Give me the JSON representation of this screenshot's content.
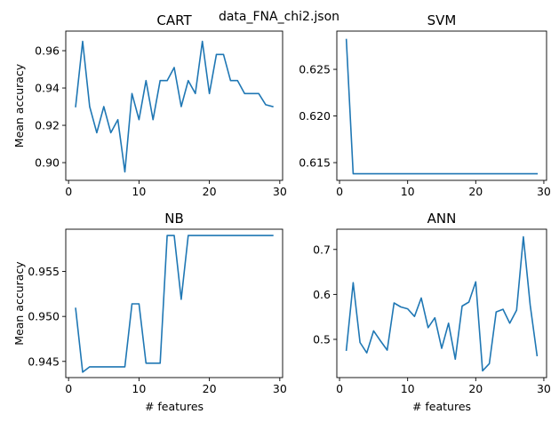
{
  "figure_title": "data_FNA_chi2.json",
  "colors": {
    "line": "#1f77b4",
    "axes": "#000000",
    "background": "#ffffff"
  },
  "chart_data": [
    {
      "type": "line",
      "title": "CART",
      "xlabel": "",
      "ylabel": "Mean accuracy",
      "xlim": [
        -0.4,
        30.4
      ],
      "ylim": [
        0.8905,
        0.9705
      ],
      "xticks": [
        "0",
        "10",
        "20",
        "30"
      ],
      "yticks": [
        "0.90",
        "0.92",
        "0.94",
        "0.96"
      ],
      "grid": false,
      "x": [
        1,
        2,
        3,
        4,
        5,
        6,
        7,
        8,
        9,
        10,
        11,
        12,
        13,
        14,
        15,
        16,
        17,
        18,
        19,
        20,
        21,
        22,
        23,
        24,
        25,
        26,
        27,
        28,
        29
      ],
      "values": [
        0.93,
        0.965,
        0.93,
        0.916,
        0.93,
        0.916,
        0.923,
        0.895,
        0.937,
        0.923,
        0.944,
        0.923,
        0.944,
        0.944,
        0.951,
        0.93,
        0.944,
        0.937,
        0.965,
        0.937,
        0.958,
        0.958,
        0.944,
        0.944,
        0.937,
        0.937,
        0.937,
        0.931,
        0.93
      ]
    },
    {
      "type": "line",
      "title": "SVM",
      "xlabel": "",
      "ylabel": "",
      "xlim": [
        -0.4,
        30.4
      ],
      "ylim": [
        0.6131,
        0.6291
      ],
      "xticks": [
        "0",
        "10",
        "20",
        "30"
      ],
      "yticks": [
        "0.615",
        "0.620",
        "0.625"
      ],
      "grid": false,
      "x": [
        1,
        2,
        3,
        4,
        5,
        6,
        7,
        8,
        9,
        10,
        11,
        12,
        13,
        14,
        15,
        16,
        17,
        18,
        19,
        20,
        21,
        22,
        23,
        24,
        25,
        26,
        27,
        28,
        29
      ],
      "values": [
        0.6282,
        0.6138,
        0.6138,
        0.6138,
        0.6138,
        0.6138,
        0.6138,
        0.6138,
        0.6138,
        0.6138,
        0.6138,
        0.6138,
        0.6138,
        0.6138,
        0.6138,
        0.6138,
        0.6138,
        0.6138,
        0.6138,
        0.6138,
        0.6138,
        0.6138,
        0.6138,
        0.6138,
        0.6138,
        0.6138,
        0.6138,
        0.6138,
        0.6138
      ]
    },
    {
      "type": "line",
      "title": "NB",
      "xlabel": "# features",
      "ylabel": "Mean accuracy",
      "xlim": [
        -0.4,
        30.4
      ],
      "ylim": [
        0.9432,
        0.9597
      ],
      "xticks": [
        "0",
        "10",
        "20",
        "30"
      ],
      "yticks": [
        "0.945",
        "0.950",
        "0.955"
      ],
      "grid": false,
      "x": [
        1,
        2,
        3,
        4,
        5,
        6,
        7,
        8,
        9,
        10,
        11,
        12,
        13,
        14,
        15,
        16,
        17,
        18,
        19,
        20,
        21,
        22,
        23,
        24,
        25,
        26,
        27,
        28,
        29
      ],
      "values": [
        0.9509,
        0.9438,
        0.9444,
        0.9444,
        0.9444,
        0.9444,
        0.9444,
        0.9444,
        0.9514,
        0.9514,
        0.9448,
        0.9448,
        0.9448,
        0.959,
        0.959,
        0.9519,
        0.959,
        0.959,
        0.959,
        0.959,
        0.959,
        0.959,
        0.959,
        0.959,
        0.959,
        0.959,
        0.959,
        0.959,
        0.959
      ]
    },
    {
      "type": "line",
      "title": "ANN",
      "xlabel": "# features",
      "ylabel": "",
      "xlim": [
        -0.4,
        30.4
      ],
      "ylim": [
        0.415,
        0.745
      ],
      "xticks": [
        "0",
        "10",
        "20",
        "30"
      ],
      "yticks": [
        "0.5",
        "0.6",
        "0.7"
      ],
      "grid": false,
      "x": [
        1,
        2,
        3,
        4,
        5,
        6,
        7,
        8,
        9,
        10,
        11,
        12,
        13,
        14,
        15,
        16,
        17,
        18,
        19,
        20,
        21,
        22,
        23,
        24,
        25,
        26,
        27,
        28,
        29
      ],
      "values": [
        0.476,
        0.626,
        0.493,
        0.47,
        0.519,
        0.497,
        0.476,
        0.581,
        0.572,
        0.568,
        0.551,
        0.592,
        0.526,
        0.548,
        0.48,
        0.536,
        0.456,
        0.574,
        0.583,
        0.628,
        0.43,
        0.446,
        0.561,
        0.567,
        0.536,
        0.565,
        0.728,
        0.576,
        0.464
      ]
    }
  ]
}
